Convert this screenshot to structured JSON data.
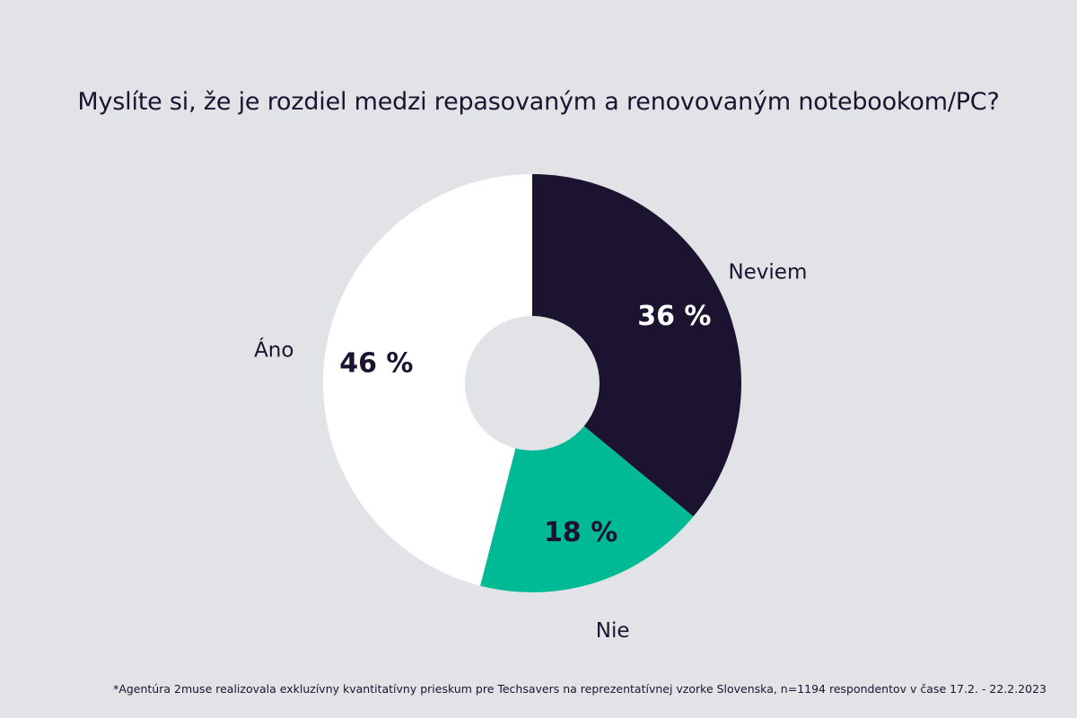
{
  "chart_data": {
    "type": "pie",
    "title": "Myslíte si, že je rozdiel medzi repasovaným a renovovaným notebookom/PC?",
    "slices": [
      {
        "label": "Neviem",
        "value": 36,
        "value_label": "36 %",
        "color": "#1b1330",
        "text_color": "#ffffff"
      },
      {
        "label": "Nie",
        "value": 18,
        "value_label": "18 %",
        "color": "#00ba96",
        "text_color": "#1b1330"
      },
      {
        "label": "Áno",
        "value": 46,
        "value_label": "46 %",
        "color": "#ffffff",
        "text_color": "#1b1330"
      }
    ],
    "start": "12 o'clock",
    "direction": "clockwise",
    "donut": true,
    "background": "#e1e3e6"
  },
  "footnote": "*Agentúra 2muse realizovala exkluzívny kvantitatívny prieskum pre Techsavers na reprezentatívnej vzorke Slovenska, n=1194 respondentov v čase 17.2. - 22.2.2023"
}
